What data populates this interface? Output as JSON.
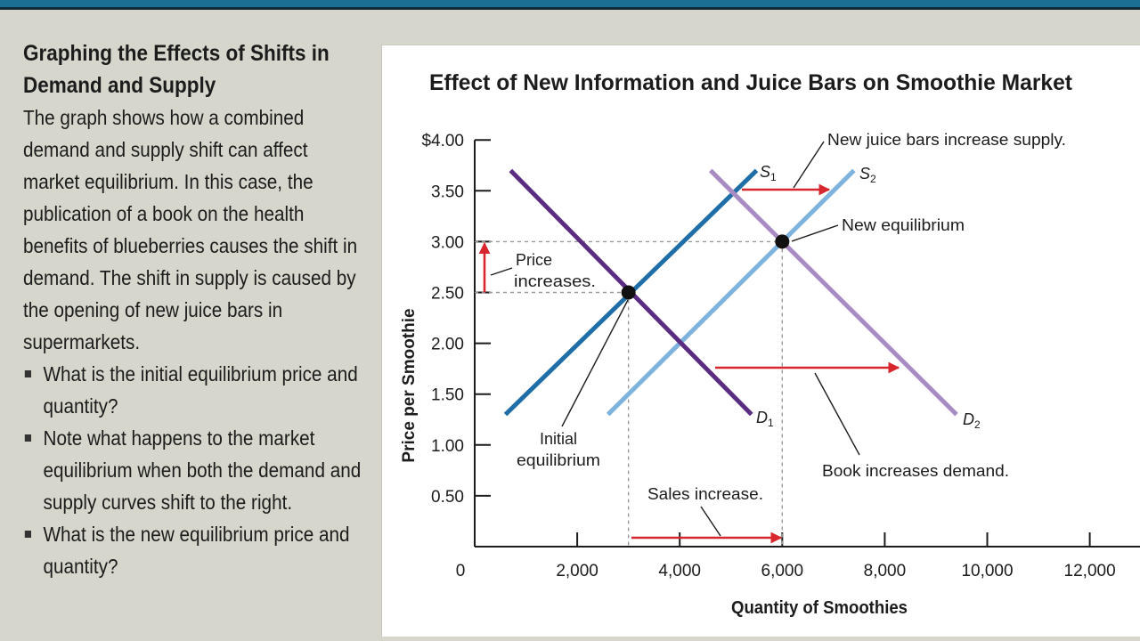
{
  "left_panel": {
    "title": "Graphing the Effects of Shifts in Demand and Supply",
    "body": "The graph shows how a combined demand and supply shift can affect market equilibrium. In this case, the publication of a book on the health benefits of blueberries causes the shift in demand. The shift in supply is caused by the opening of new juice bars in supermarkets.",
    "bullets": [
      "What is the initial equilibrium price and quantity?",
      "Note what happens to the market equilibrium when both the demand and supply curves shift to the right.",
      "What is the new equilibrium price and quantity?"
    ]
  },
  "chart_data": {
    "type": "line",
    "title": "Effect of New Information and Juice Bars on Smoothie Market",
    "xlabel": "Quantity of Smoothies",
    "ylabel": "Price per Smoothie",
    "xlim": [
      0,
      13000
    ],
    "ylim": [
      0,
      4.0
    ],
    "x_ticks": [
      {
        "value": 0,
        "label": "0"
      },
      {
        "value": 2000,
        "label": "2,000"
      },
      {
        "value": 4000,
        "label": "4,000"
      },
      {
        "value": 6000,
        "label": "6,000"
      },
      {
        "value": 8000,
        "label": "8,000"
      },
      {
        "value": 10000,
        "label": "10,000"
      },
      {
        "value": 12000,
        "label": "12,000"
      }
    ],
    "y_ticks": [
      {
        "value": 0.5,
        "label": "0.50"
      },
      {
        "value": 1.0,
        "label": "1.00"
      },
      {
        "value": 1.5,
        "label": "1.50"
      },
      {
        "value": 2.0,
        "label": "2.00"
      },
      {
        "value": 2.5,
        "label": "2.50"
      },
      {
        "value": 3.0,
        "label": "3.00"
      },
      {
        "value": 3.5,
        "label": "3.50"
      },
      {
        "value": 4.0,
        "label": "$4.00"
      }
    ],
    "series": [
      {
        "name": "D1",
        "label_main": "D",
        "label_sub": "1",
        "color": "#5b2d82",
        "points": [
          [
            700,
            3.7
          ],
          [
            5400,
            1.3
          ]
        ]
      },
      {
        "name": "D2",
        "label_main": "D",
        "label_sub": "2",
        "color": "#a98bc4",
        "points": [
          [
            4600,
            3.7
          ],
          [
            9400,
            1.3
          ]
        ]
      },
      {
        "name": "S1",
        "label_main": "S",
        "label_sub": "1",
        "color": "#1f6ea8",
        "points": [
          [
            600,
            1.3
          ],
          [
            5500,
            3.7
          ]
        ]
      },
      {
        "name": "S2",
        "label_main": "S",
        "label_sub": "2",
        "color": "#7db3dc",
        "points": [
          [
            2600,
            1.3
          ],
          [
            7400,
            3.7
          ]
        ]
      }
    ],
    "equilibria": [
      {
        "x": 3000,
        "y": 2.5,
        "label": "Initial equilibrium",
        "label_lines": [
          "Initial",
          "equilibrium"
        ]
      },
      {
        "x": 6000,
        "y": 3.0,
        "label": "New equilibrium"
      }
    ],
    "annotations": {
      "supply_shift": "New juice bars increase supply.",
      "demand_shift": "Book increases demand.",
      "price_change": [
        "Price",
        "increases."
      ],
      "quantity_change": "Sales increase."
    },
    "arrow_color": "#d7262e",
    "grid": false
  }
}
